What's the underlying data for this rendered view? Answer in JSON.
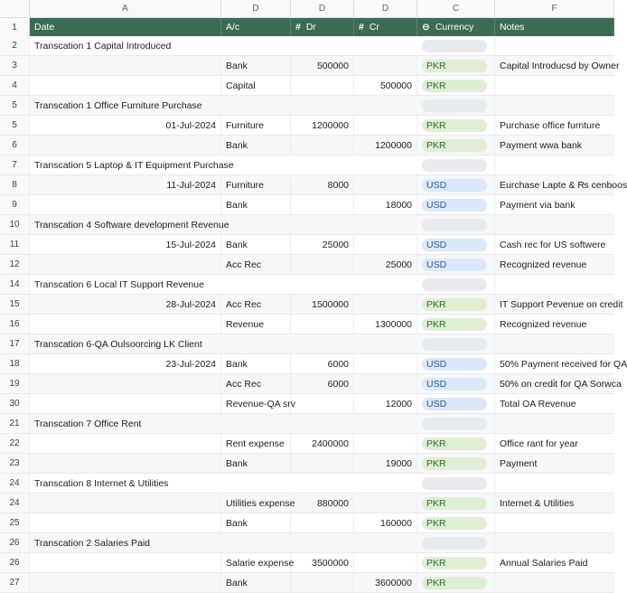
{
  "column_letters": [
    "A",
    "D",
    "D",
    "D",
    "C",
    "F"
  ],
  "header": {
    "row_number": "1",
    "date": "Date",
    "account": "A/c",
    "dr_icon": "#",
    "dr": "Dr",
    "cr_icon": "#",
    "cr": "Cr",
    "currency_icon": "⊖",
    "currency": "Currency",
    "notes": "Notes"
  },
  "rows": [
    {
      "rn": "2",
      "type": "txn",
      "desc": "Transcation 1 Capital Introduced"
    },
    {
      "rn": "3",
      "type": "entry",
      "date": "",
      "account": "Bank",
      "dr": "500000",
      "cr": "",
      "currency": "PKR",
      "notes": "Capital Introducsd by Owner"
    },
    {
      "rn": "4",
      "type": "entry",
      "date": "",
      "account": "Capital",
      "dr": "",
      "cr": "500000",
      "currency": "PKR",
      "notes": ""
    },
    {
      "rn": "5",
      "type": "txn",
      "desc": "Transcation 1 Office Furniture Purchase"
    },
    {
      "rn": "5",
      "type": "entry",
      "date": "01-Jul-2024",
      "account": "Furniture",
      "dr": "1200000",
      "cr": "",
      "currency": "PKR",
      "notes": "Purchase office furnture"
    },
    {
      "rn": "6",
      "type": "entry",
      "date": "",
      "account": "Bank",
      "dr": "",
      "cr": "1200000",
      "currency": "PKR",
      "notes": "Payment wwa bank"
    },
    {
      "rn": "7",
      "type": "txn",
      "desc": "Transcation 5 Laptop & IT Equipment Purchase"
    },
    {
      "rn": "8",
      "type": "entry",
      "date": "11-Jul-2024",
      "account": "Furniture",
      "dr": "8000",
      "cr": "",
      "currency": "USD",
      "notes": "Eurchase Lapte & ₨ cenboos"
    },
    {
      "rn": "9",
      "type": "entry",
      "date": "",
      "account": "Bank",
      "dr": "",
      "cr": "18000",
      "currency": "USD",
      "notes": "Payment via bank"
    },
    {
      "rn": "10",
      "type": "txn",
      "desc": "Transcation 4 Software development Revenue"
    },
    {
      "rn": "11",
      "type": "entry",
      "date": "15-Jul-2024",
      "account": "Bank",
      "dr": "25000",
      "cr": "",
      "currency": "USD",
      "notes": "Cash rec for US softwere"
    },
    {
      "rn": "12",
      "type": "entry",
      "date": "",
      "account": "Acc Rec",
      "dr": "",
      "cr": "25000",
      "currency": "USD",
      "notes": "Recognized revenue"
    },
    {
      "rn": "14",
      "type": "txn",
      "desc": "Transcation 6 Local  IT Support Revenue"
    },
    {
      "rn": "15",
      "type": "entry",
      "date": "28-Jul-2024",
      "account": "Acc Rec",
      "dr": "1500000",
      "cr": "",
      "currency": "PKR",
      "notes": "IT Support Pevenue on credit"
    },
    {
      "rn": "16",
      "type": "entry",
      "date": "",
      "account": "Revenue",
      "dr": "",
      "cr": "1300000",
      "currency": "PKR",
      "notes": "Recognized revenue"
    },
    {
      "rn": "17",
      "type": "txn",
      "desc": "Transcation 6-QA Oulsoorcing LK Client"
    },
    {
      "rn": "18",
      "type": "entry",
      "date": "23-Jul-2024",
      "account": "Bank",
      "dr": "6000",
      "cr": "",
      "currency": "USD",
      "notes": "50% Payment received for QA"
    },
    {
      "rn": "19",
      "type": "entry",
      "date": "",
      "account": "Acc Rec",
      "dr": "6000",
      "cr": "",
      "currency": "USD",
      "notes": "50% on credi̇t for QA Sorwca"
    },
    {
      "rn": "30",
      "type": "entry",
      "date": "",
      "account": "Revenue-QA srv",
      "dr": "",
      "cr": "12000",
      "currency": "USD",
      "notes": "Total OA Revenue"
    },
    {
      "rn": "21",
      "type": "txn",
      "desc": "Transcation 7 Office Rent"
    },
    {
      "rn": "22",
      "type": "entry",
      "date": "",
      "account": "Rent expense",
      "dr": "2400000",
      "cr": "",
      "currency": "PKR",
      "notes": "Office rant for year"
    },
    {
      "rn": "23",
      "type": "entry",
      "date": "",
      "account": "Bank",
      "dr": "",
      "cr": "19000",
      "currency": "PKR",
      "notes": "Payment"
    },
    {
      "rn": "24",
      "type": "txn",
      "desc": "Transcation 8 Internet & Utilities"
    },
    {
      "rn": "24",
      "type": "entry",
      "date": "",
      "account": "Utilities expense",
      "dr": "880000",
      "cr": "",
      "currency": "PKR",
      "notes": "Internet & Utilities"
    },
    {
      "rn": "25",
      "type": "entry",
      "date": "",
      "account": "Bank",
      "dr": "",
      "cr": "160000",
      "currency": "PKR",
      "notes": ""
    },
    {
      "rn": "26",
      "type": "txn",
      "desc": "Transcation 2 Salaries Paid"
    },
    {
      "rn": "26",
      "type": "entry",
      "date": "",
      "account": "Salarie expense",
      "dr": "3500000",
      "cr": "",
      "currency": "PKR",
      "notes": "Annual Salaries Paid"
    },
    {
      "rn": "27",
      "type": "entry",
      "date": "",
      "account": "Bank",
      "dr": "",
      "cr": "3600000",
      "currency": "PKR",
      "notes": ""
    }
  ]
}
